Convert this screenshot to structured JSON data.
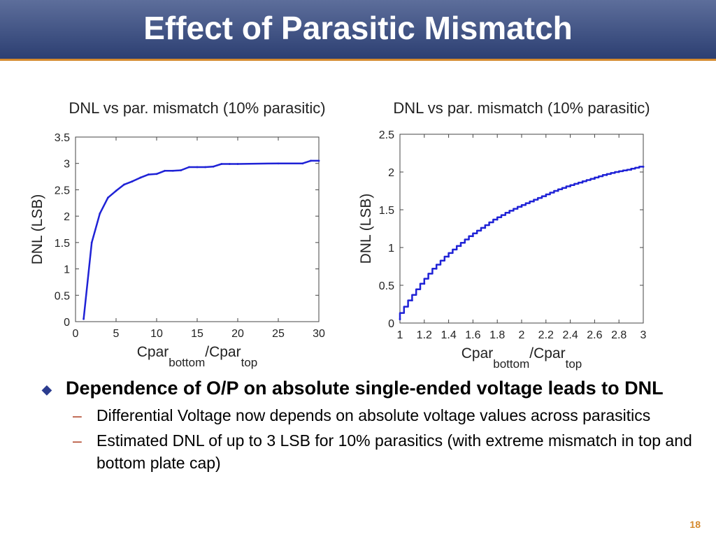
{
  "slide": {
    "title": "Effect of Parasitic Mismatch",
    "page_number": "18",
    "bullets": [
      {
        "text": "Dependence of O/P on absolute single-ended voltage leads to DNL",
        "sub": [
          "Differential Voltage now depends on absolute voltage values across parasitics",
          "Estimated DNL of up to 3 LSB for 10% parasitics (with extreme mismatch in top and bottom plate cap)"
        ]
      }
    ],
    "colors": {
      "title_bar": "#3a4c80",
      "accent": "#d58a2e",
      "line": "#1f22d6",
      "bullet_marker": "#2b3c8f"
    },
    "icons": {
      "bullet": "diamond-icon",
      "sub_bullet": "dash-icon"
    }
  },
  "chart_data": [
    {
      "type": "line",
      "title": "DNL vs par. mismatch (10% parasitic)",
      "xlabel_main": "Cpar",
      "xlabel_sub1": "bottom",
      "xlabel_mid": "/Cpar",
      "xlabel_sub2": "top",
      "ylabel": "DNL (LSB)",
      "xlim": [
        0,
        30
      ],
      "ylim": [
        0,
        3.5
      ],
      "xticks": [
        "0",
        "5",
        "10",
        "15",
        "20",
        "25",
        "30"
      ],
      "yticks": [
        "0",
        "0.5",
        "1",
        "1.5",
        "2",
        "2.5",
        "3",
        "3.5"
      ],
      "x": [
        1,
        2,
        3,
        4,
        5,
        6,
        7,
        8,
        9,
        10,
        11,
        12,
        13,
        14,
        15,
        16,
        17,
        18,
        19,
        20,
        25,
        28,
        29,
        30
      ],
      "y": [
        0.05,
        1.5,
        2.05,
        2.35,
        2.48,
        2.6,
        2.66,
        2.73,
        2.79,
        2.8,
        2.86,
        2.86,
        2.87,
        2.93,
        2.93,
        2.93,
        2.94,
        2.99,
        2.99,
        2.99,
        3.0,
        3.0,
        3.05,
        3.05
      ]
    },
    {
      "type": "line",
      "title": "DNL vs par. mismatch (10% parasitic)",
      "xlabel_main": "Cpar",
      "xlabel_sub1": "bottom",
      "xlabel_mid": "/Cpar",
      "xlabel_sub2": "top",
      "ylabel": "DNL (LSB)",
      "xlim": [
        1,
        3
      ],
      "ylim": [
        0,
        2.5
      ],
      "xticks": [
        "1",
        "1.2",
        "1.4",
        "1.6",
        "1.8",
        "2",
        "2.2",
        "2.4",
        "2.6",
        "2.8",
        "3"
      ],
      "yticks": [
        "0",
        "0.5",
        "1",
        "1.5",
        "2",
        "2.5"
      ],
      "x": [
        1.0,
        1.1,
        1.2,
        1.3,
        1.4,
        1.5,
        1.6,
        1.7,
        1.8,
        1.9,
        2.0,
        2.1,
        2.2,
        2.3,
        2.4,
        2.5,
        2.6,
        2.7,
        2.8,
        2.9,
        3.0
      ],
      "y": [
        0.05,
        0.3,
        0.52,
        0.72,
        0.88,
        1.02,
        1.15,
        1.26,
        1.37,
        1.46,
        1.54,
        1.61,
        1.68,
        1.75,
        1.81,
        1.86,
        1.91,
        1.96,
        2.0,
        2.03,
        2.07
      ],
      "step_width": 0.03
    }
  ]
}
